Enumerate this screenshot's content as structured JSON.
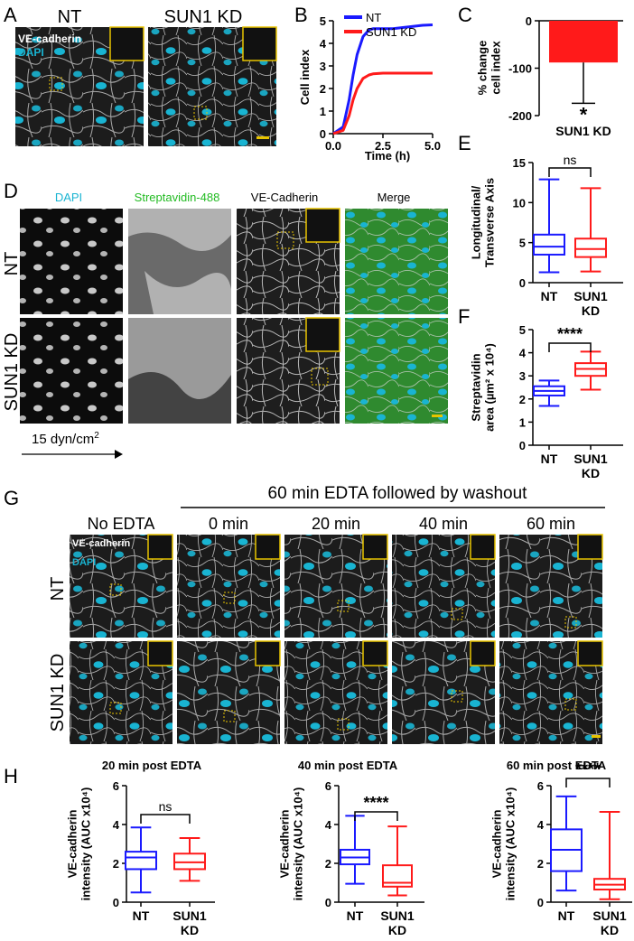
{
  "panel_letters": {
    "A": "A",
    "B": "B",
    "C": "C",
    "D": "D",
    "E": "E",
    "F": "F",
    "G": "G",
    "H": "H"
  },
  "panelA": {
    "col_titles": [
      "NT",
      "SUN1 KD"
    ],
    "channel_labels": [
      "VE-cadherin",
      "DAPI"
    ]
  },
  "panelD": {
    "col_titles": [
      "DAPI",
      "Streptavidin-488",
      "VE-Cadherin",
      "Merge"
    ],
    "row_titles": [
      "NT",
      "SUN1 KD"
    ],
    "flow_label": "15 dyn/cm",
    "flow_superscript": "2"
  },
  "panelG": {
    "header": "60 min EDTA followed by washout",
    "col_titles": [
      "No EDTA",
      "0 min",
      "20 min",
      "40 min",
      "60 min"
    ],
    "row_titles": [
      "NT",
      "SUN1 KD"
    ],
    "channel_labels": [
      "VE-cadherin",
      "DAPI"
    ]
  },
  "colors": {
    "nt": "#1a1aff",
    "kd": "#ff1a1a",
    "dapi": "#19b4d2",
    "streptavidin": "#22bb22",
    "inset": "#e8c400",
    "micro_bg": "#1a1a1a"
  },
  "chart_data": [
    {
      "id": "B",
      "type": "line",
      "xlabel": "Time (h)",
      "ylabel": "Cell index",
      "xlim": [
        0,
        5
      ],
      "ylim": [
        0,
        5
      ],
      "x_ticks": [
        "0.0",
        "2.5",
        "5.0"
      ],
      "y_ticks": [
        "0",
        "1",
        "2",
        "3",
        "4",
        "5"
      ],
      "x": [
        0,
        0.5,
        0.8,
        1.0,
        1.2,
        1.5,
        1.8,
        2.0,
        2.5,
        3.0,
        3.5,
        4.0,
        4.5,
        5.0
      ],
      "series": [
        {
          "name": "NT",
          "color": "#1a1aff",
          "values": [
            0,
            0.3,
            1.5,
            2.6,
            3.5,
            4.3,
            4.6,
            4.65,
            4.65,
            4.65,
            4.7,
            4.75,
            4.8,
            4.82
          ]
        },
        {
          "name": "SUN1 KD",
          "color": "#ff1a1a",
          "values": [
            0,
            0.15,
            0.8,
            1.5,
            2.0,
            2.45,
            2.6,
            2.65,
            2.68,
            2.68,
            2.68,
            2.68,
            2.68,
            2.68
          ]
        }
      ],
      "legend": "top-right"
    },
    {
      "id": "C",
      "type": "bar",
      "ylabel_lines": [
        "% change",
        "cell index"
      ],
      "categories": [
        "SUN1 KD"
      ],
      "values": [
        -88
      ],
      "error": [
        86
      ],
      "ylim": [
        -200,
        0
      ],
      "y_ticks": [
        "0",
        "-100",
        "-200"
      ],
      "significance": "*"
    },
    {
      "id": "E",
      "type": "box",
      "ylabel_lines": [
        "Longitudinal/",
        "Transverse Axis"
      ],
      "ylim": [
        0,
        15
      ],
      "y_ticks": [
        "0",
        "5",
        "10",
        "15"
      ],
      "categories": [
        "NT",
        "SUN1 KD"
      ],
      "boxes": [
        {
          "name": "NT",
          "min": 1.3,
          "q1": 3.5,
          "median": 4.5,
          "q3": 6.0,
          "max": 12.9
        },
        {
          "name": "SUN1 KD",
          "min": 1.4,
          "q1": 3.2,
          "median": 4.2,
          "q3": 5.5,
          "max": 11.8
        }
      ],
      "significance": "ns"
    },
    {
      "id": "F",
      "type": "box",
      "ylabel_lines": [
        "Streptavidin",
        "area (µm² x 10⁴)"
      ],
      "ylim": [
        0,
        5
      ],
      "y_ticks": [
        "0",
        "1",
        "2",
        "3",
        "4",
        "5"
      ],
      "categories": [
        "NT",
        "SUN1 KD"
      ],
      "boxes": [
        {
          "name": "NT",
          "min": 1.7,
          "q1": 2.15,
          "median": 2.35,
          "q3": 2.55,
          "max": 2.8
        },
        {
          "name": "SUN1 KD",
          "min": 2.4,
          "q1": 3.0,
          "median": 3.3,
          "q3": 3.55,
          "max": 4.05
        }
      ],
      "significance": "****"
    },
    {
      "id": "H1",
      "type": "box",
      "title": "20 min post EDTA",
      "ylabel_lines": [
        "VE-cadherin",
        "intensity (AUC x10⁴)"
      ],
      "ylim": [
        0,
        6
      ],
      "y_ticks": [
        "0",
        "2",
        "4",
        "6"
      ],
      "categories": [
        "NT",
        "SUN1 KD"
      ],
      "boxes": [
        {
          "name": "NT",
          "min": 0.5,
          "q1": 1.7,
          "median": 2.3,
          "q3": 2.6,
          "max": 3.85
        },
        {
          "name": "SUN1 KD",
          "min": 1.1,
          "q1": 1.7,
          "median": 2.05,
          "q3": 2.5,
          "max": 3.3
        }
      ],
      "significance": "ns"
    },
    {
      "id": "H2",
      "type": "box",
      "title": "40 min post EDTA",
      "ylabel_lines": [
        "VE-cadherin",
        "intensity (AUC x10⁴)"
      ],
      "ylim": [
        0,
        6
      ],
      "y_ticks": [
        "0",
        "2",
        "4",
        "6"
      ],
      "categories": [
        "NT",
        "SUN1 KD"
      ],
      "boxes": [
        {
          "name": "NT",
          "min": 0.95,
          "q1": 1.95,
          "median": 2.3,
          "q3": 2.7,
          "max": 4.45
        },
        {
          "name": "SUN1 KD",
          "min": 0.35,
          "q1": 0.8,
          "median": 1.0,
          "q3": 1.9,
          "max": 3.9
        }
      ],
      "significance": "****"
    },
    {
      "id": "H3",
      "type": "box",
      "title": "60 min post EDTA",
      "ylabel_lines": [
        "VE-cadherin",
        "intensity (AUC x10⁴)"
      ],
      "ylim": [
        0,
        6
      ],
      "y_ticks": [
        "0",
        "2",
        "4",
        "6"
      ],
      "categories": [
        "NT",
        "SUN1 KD"
      ],
      "boxes": [
        {
          "name": "NT",
          "min": 0.6,
          "q1": 1.6,
          "median": 2.7,
          "q3": 3.75,
          "max": 5.45
        },
        {
          "name": "SUN1 KD",
          "min": 0.15,
          "q1": 0.65,
          "median": 0.9,
          "q3": 1.2,
          "max": 4.65
        }
      ],
      "significance": "****"
    }
  ]
}
